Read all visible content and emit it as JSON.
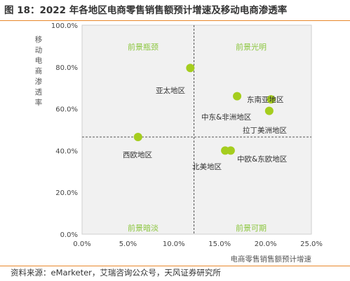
{
  "header": {
    "title": "图 18：2022 年各地区电商零售销售额预计增速及移动电商渗透率"
  },
  "footer": {
    "source": "资料来源：eMarketer，艾瑞咨询公众号，天风证券研究所"
  },
  "chart_data": {
    "type": "scatter",
    "title": "图 18：2022 年各地区电商零售销售额预计增速及移动电商渗透率",
    "xlabel": "电商零售销售额预计增速",
    "ylabel": "移动电商渗透率",
    "xlim": [
      0,
      25
    ],
    "ylim": [
      0,
      100
    ],
    "x_ticks": [
      "0.0%",
      "5.0%",
      "10.0%",
      "15.0%",
      "20.0%",
      "25.0%"
    ],
    "y_ticks": [
      "0.0%",
      "20.0%",
      "40.0%",
      "60.0%",
      "80.0%",
      "100.0%"
    ],
    "divider_x": 12.2,
    "divider_y": 46.5,
    "point_color": "#a5cd1e",
    "quadrant_label_color": "#8cc63f",
    "quadrants": [
      "前景瓶颈",
      "前景光明",
      "前景暗淡",
      "前景可期"
    ],
    "points": [
      {
        "label": "亚太地区",
        "x": 11.8,
        "y": 79.5
      },
      {
        "label": "东南亚地区",
        "x": 20.6,
        "y": 64.5
      },
      {
        "label": "",
        "x": 16.9,
        "y": 66.0
      },
      {
        "label": "中东&非洲地区",
        "x": 20.4,
        "y": 59.0
      },
      {
        "label": "拉丁美洲地区",
        "x": null,
        "y": null
      },
      {
        "label": "西欧地区",
        "x": 6.1,
        "y": 46.5
      },
      {
        "label": "北美地区",
        "x": 15.6,
        "y": 40.0
      },
      {
        "label": "中欧&东欧地区",
        "x": 16.2,
        "y": 40.0
      }
    ]
  }
}
